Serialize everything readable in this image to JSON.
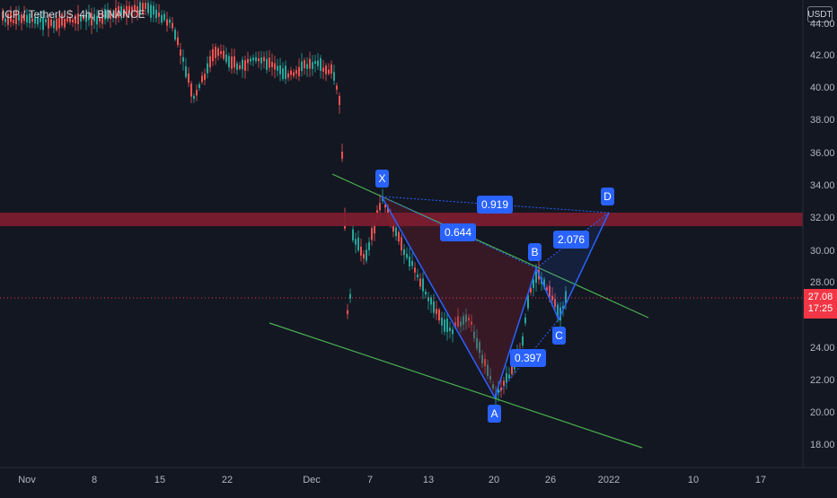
{
  "chart": {
    "title": "ICP / TetherUS, 4h, BINANCE",
    "currency": "USDT",
    "price_ticks": [
      "44.00",
      "42.00",
      "40.00",
      "38.00",
      "36.00",
      "34.00",
      "32.00",
      "30.00",
      "28.00",
      "26.00",
      "24.00",
      "22.00",
      "20.00",
      "18.00"
    ],
    "last_price": "27.08",
    "countdown": "17:25",
    "time_ticks": [
      "Nov",
      "8",
      "15",
      "22",
      "Dec",
      "7",
      "13",
      "20",
      "26",
      "2022",
      "10",
      "17"
    ],
    "zone_label": "",
    "colors": {
      "background": "#131722",
      "up": "#26a69a",
      "down": "#ef5350",
      "pattern": "#2962ff",
      "trendline": "#4caf50",
      "zone": "#7a1c2f",
      "price_badge": "#f23645"
    }
  },
  "pattern": {
    "points": {
      "X": "X",
      "A": "A",
      "B": "B",
      "C": "C",
      "D": "D"
    },
    "ratios": {
      "xb": "0.644",
      "ac": "0.397",
      "bd": "2.076",
      "xd": "0.919"
    }
  }
}
